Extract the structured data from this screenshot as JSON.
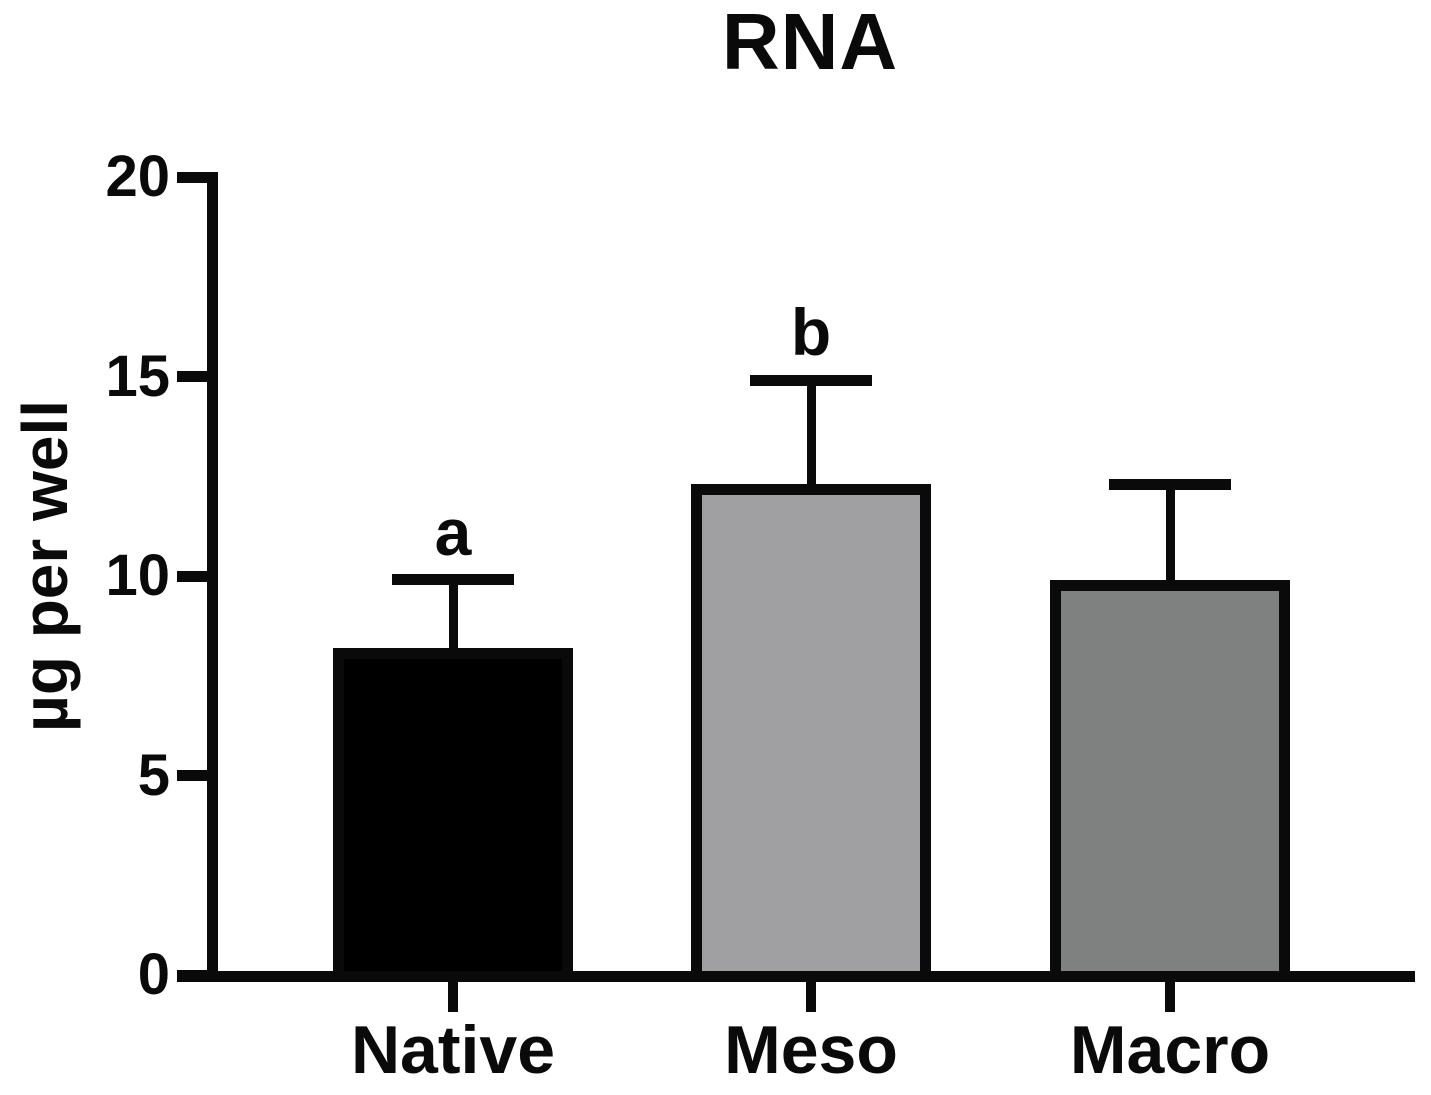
{
  "title": "RNA",
  "y_axis": {
    "label": "µg per well",
    "tick_labels": [
      "0",
      "5",
      "10",
      "15",
      "20"
    ]
  },
  "x_axis": {
    "tick_labels": [
      "Native",
      "Meso",
      "Macro"
    ]
  },
  "chart_data": {
    "type": "bar",
    "title": "RNA",
    "xlabel": "",
    "ylabel": "µg per well",
    "categories": [
      "Native",
      "Meso",
      "Macro"
    ],
    "values": [
      8.2,
      12.3,
      9.9
    ],
    "error_plus": [
      1.7,
      2.6,
      2.4
    ],
    "error_cap_values": [
      9.9,
      14.9,
      12.3
    ],
    "significance_letters": [
      "a",
      "b",
      ""
    ],
    "bar_colors": [
      "#000000",
      "#a0a0a2",
      "#7f8080"
    ],
    "bar_border_color": "#0a0a0a",
    "axis_color": "#0a0a0a",
    "background_color": "#ffffff",
    "ylim": [
      0,
      20
    ],
    "yticks": [
      0,
      5,
      10,
      15,
      20
    ],
    "grid": false,
    "legend": false
  }
}
